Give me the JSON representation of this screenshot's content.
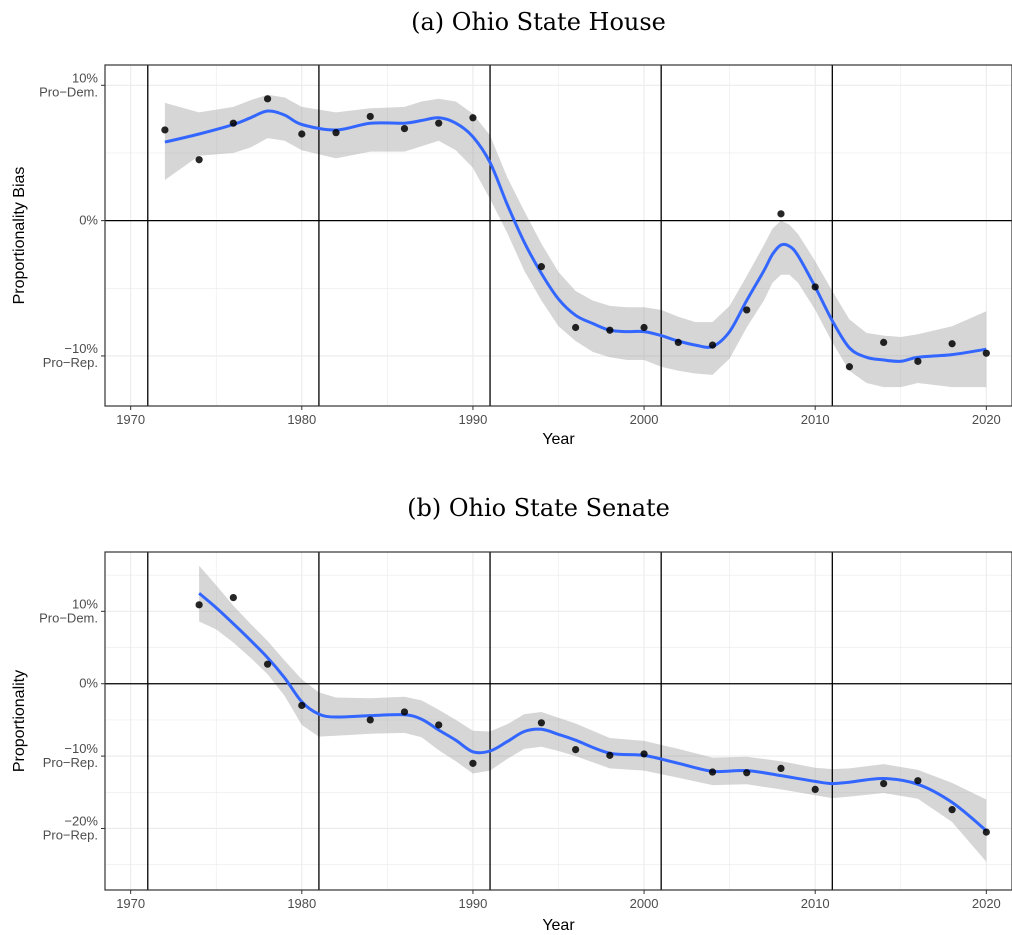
{
  "chart_data": [
    {
      "type": "scatter",
      "title": "(a) Ohio State House",
      "xlabel": "Year",
      "ylabel": "Proportionality Bias",
      "xlim": [
        1968.5,
        2021.5
      ],
      "ylim": [
        -13.7,
        11.5
      ],
      "grid": true,
      "legend": "none",
      "x_ticks": [
        {
          "value": 1970,
          "label": "1970"
        },
        {
          "value": 1980,
          "label": "1980"
        },
        {
          "value": 1990,
          "label": "1990"
        },
        {
          "value": 2000,
          "label": "2000"
        },
        {
          "value": 2010,
          "label": "2010"
        },
        {
          "value": 2020,
          "label": "2020"
        }
      ],
      "y_ticks": [
        {
          "value": 10,
          "line1": "10%",
          "line2": "Pro−Dem."
        },
        {
          "value": 0,
          "line1": "0%",
          "line2": ""
        },
        {
          "value": -10,
          "line1": "−10%",
          "line2": "Pro−Rep."
        }
      ],
      "vlines": [
        1971,
        1981,
        1991,
        2001,
        2011
      ],
      "hline": 0,
      "points": {
        "x": [
          1972,
          1974,
          1976,
          1978,
          1980,
          1982,
          1984,
          1986,
          1988,
          1990,
          1994,
          1996,
          1998,
          2000,
          2002,
          2004,
          2006,
          2008,
          2010,
          2012,
          2014,
          2016,
          2018,
          2020
        ],
        "y": [
          6.7,
          4.5,
          7.2,
          9.0,
          6.4,
          6.5,
          7.7,
          6.8,
          7.2,
          7.6,
          -3.4,
          -7.9,
          -8.1,
          -7.9,
          -9.0,
          -9.2,
          -6.6,
          0.5,
          -4.9,
          -10.8,
          -9.0,
          -10.4,
          -9.1,
          -9.8
        ]
      },
      "smooth": {
        "x": [
          1972,
          1974,
          1976,
          1977,
          1978,
          1979,
          1980,
          1982,
          1984,
          1986,
          1987,
          1988,
          1989,
          1990,
          1991,
          1992,
          1993,
          1994,
          1995,
          1996,
          1997,
          1998,
          1999,
          2000,
          2001,
          2002,
          2003,
          2004,
          2005,
          2006,
          2007,
          2007.5,
          2008,
          2008.5,
          2009,
          2010,
          2011,
          2012,
          2013,
          2014,
          2015,
          2016,
          2018,
          2020
        ],
        "y": [
          5.8,
          6.4,
          7.1,
          7.6,
          8.1,
          7.8,
          7.1,
          6.7,
          7.2,
          7.2,
          7.4,
          7.6,
          7.2,
          6.2,
          4.3,
          1.2,
          -1.6,
          -3.9,
          -5.8,
          -7.0,
          -7.6,
          -8.1,
          -8.2,
          -8.2,
          -8.5,
          -8.9,
          -9.2,
          -9.3,
          -8.2,
          -5.9,
          -3.7,
          -2.5,
          -1.8,
          -1.9,
          -2.6,
          -4.9,
          -7.4,
          -9.4,
          -10.1,
          -10.3,
          -10.4,
          -10.1,
          -9.9,
          -9.5
        ]
      },
      "band": {
        "upper": [
          8.7,
          8.0,
          8.4,
          8.9,
          9.3,
          9.1,
          8.4,
          8.0,
          8.3,
          8.4,
          8.8,
          9.0,
          8.8,
          7.9,
          6.3,
          3.2,
          0.7,
          -1.7,
          -3.8,
          -5.2,
          -5.9,
          -6.3,
          -6.4,
          -6.4,
          -6.6,
          -7.1,
          -7.5,
          -7.5,
          -6.3,
          -4.1,
          -1.8,
          -0.6,
          0.0,
          -0.3,
          -1.0,
          -3.0,
          -5.2,
          -7.3,
          -8.3,
          -8.5,
          -8.6,
          -8.4,
          -7.8,
          -6.7
        ],
        "lower": [
          3.0,
          4.8,
          5.0,
          5.4,
          6.1,
          5.9,
          5.2,
          4.6,
          5.1,
          5.1,
          5.5,
          5.9,
          5.2,
          3.9,
          1.6,
          -0.9,
          -3.7,
          -5.9,
          -7.8,
          -8.9,
          -9.7,
          -10.1,
          -10.3,
          -10.3,
          -10.8,
          -11.1,
          -11.3,
          -11.4,
          -10.2,
          -7.9,
          -5.9,
          -4.6,
          -4.0,
          -4.0,
          -4.6,
          -6.6,
          -9.0,
          -11.1,
          -12.0,
          -12.3,
          -12.3,
          -12.0,
          -12.3,
          -12.3
        ]
      }
    },
    {
      "type": "scatter",
      "title": "(b) Ohio State Senate",
      "xlabel": "Year",
      "ylabel": "Proportionality",
      "xlim": [
        1968.5,
        2021.5
      ],
      "ylim": [
        -28.5,
        18.2
      ],
      "grid": true,
      "legend": "none",
      "x_ticks": [
        {
          "value": 1970,
          "label": "1970"
        },
        {
          "value": 1980,
          "label": "1980"
        },
        {
          "value": 1990,
          "label": "1990"
        },
        {
          "value": 2000,
          "label": "2000"
        },
        {
          "value": 2010,
          "label": "2010"
        },
        {
          "value": 2020,
          "label": "2020"
        }
      ],
      "y_ticks": [
        {
          "value": 10,
          "line1": "10%",
          "line2": "Pro−Dem."
        },
        {
          "value": 0,
          "line1": "0%",
          "line2": ""
        },
        {
          "value": -10,
          "line1": "−10%",
          "line2": "Pro−Rep."
        },
        {
          "value": -20,
          "line1": "−20%",
          "line2": "Pro−Rep."
        }
      ],
      "vlines": [
        1971,
        1981,
        1991,
        2001,
        2011
      ],
      "hline": 0,
      "points": {
        "x": [
          1974,
          1976,
          1978,
          1980,
          1984,
          1986,
          1988,
          1990,
          1994,
          1996,
          1998,
          2000,
          2004,
          2006,
          2008,
          2010,
          2014,
          2016,
          2018,
          2020
        ],
        "y": [
          10.9,
          11.9,
          2.7,
          -3.0,
          -5.0,
          -3.9,
          -5.7,
          -11.0,
          -5.4,
          -9.1,
          -9.9,
          -9.7,
          -12.2,
          -12.3,
          -11.7,
          -14.6,
          -13.8,
          -13.4,
          -17.4,
          -20.5
        ]
      },
      "smooth": {
        "x": [
          1974,
          1975,
          1976,
          1977,
          1978,
          1979,
          1980,
          1981,
          1982,
          1984,
          1986,
          1987,
          1988,
          1989,
          1990,
          1991,
          1992,
          1993,
          1994,
          1995,
          1996,
          1998,
          2000,
          2002,
          2004,
          2006,
          2008,
          2010,
          2011,
          2012,
          2014,
          2016,
          2018,
          2020
        ],
        "y": [
          12.5,
          10.5,
          8.3,
          6.0,
          3.6,
          0.8,
          -2.5,
          -4.2,
          -4.6,
          -4.4,
          -4.3,
          -4.9,
          -6.4,
          -7.8,
          -9.4,
          -9.3,
          -8.0,
          -6.6,
          -6.3,
          -7.0,
          -7.8,
          -9.6,
          -9.9,
          -11.0,
          -12.1,
          -12.0,
          -12.7,
          -13.5,
          -13.8,
          -13.6,
          -13.1,
          -13.9,
          -16.4,
          -20.3
        ],
        "upper_note": ""
      },
      "band": {
        "upper": [
          16.3,
          13.6,
          10.8,
          8.3,
          5.9,
          3.2,
          0.6,
          -1.2,
          -1.9,
          -2.0,
          -1.8,
          -2.3,
          -3.6,
          -5.0,
          -6.5,
          -6.6,
          -5.6,
          -4.2,
          -3.9,
          -4.7,
          -5.5,
          -7.5,
          -7.9,
          -9.0,
          -10.2,
          -10.1,
          -10.7,
          -11.6,
          -11.8,
          -11.7,
          -11.1,
          -11.9,
          -13.7,
          -16.0
        ],
        "lower": [
          8.6,
          7.5,
          5.7,
          3.6,
          1.3,
          -1.7,
          -5.7,
          -7.3,
          -7.2,
          -6.9,
          -6.8,
          -7.4,
          -9.2,
          -10.7,
          -12.4,
          -12.0,
          -10.4,
          -9.0,
          -8.7,
          -9.3,
          -10.0,
          -11.7,
          -12.0,
          -13.0,
          -14.0,
          -13.9,
          -14.6,
          -15.4,
          -15.8,
          -15.6,
          -15.1,
          -15.9,
          -19.1,
          -24.6
        ]
      }
    }
  ]
}
